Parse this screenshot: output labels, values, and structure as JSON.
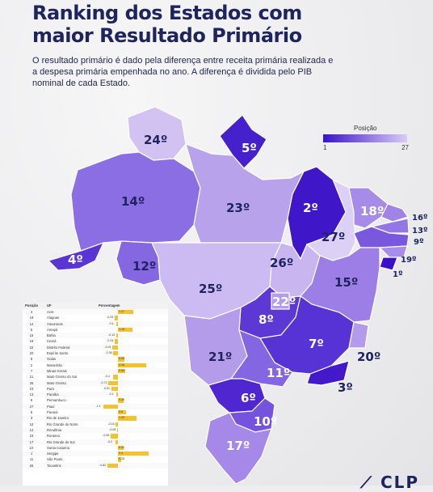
{
  "title": {
    "line1": "Ranking dos Estados com",
    "line2": "maior Resultado Primário"
  },
  "subtitle": "O resultado primário é dado pela diferença entre receita primária realizada e a despesa primária empenhada no ano. A diferença é dividida pelo PIB nominal de cada Estado.",
  "legend": {
    "title": "Posição",
    "min": "1",
    "max": "27",
    "color_min": "#3b12c9",
    "color_max": "#d9ccf5"
  },
  "map_labels": {
    "RR": "24º",
    "AP": "5º",
    "AM": "14º",
    "PA": "23º",
    "MA": "2º",
    "CE": "18º",
    "RN": "16º",
    "PB": "13º",
    "PE": "9º",
    "AL": "19º",
    "SE": "1º",
    "PI": "27º",
    "AC": "4º",
    "RO": "12º",
    "TO": "26º",
    "BA": "15º",
    "MT": "25º",
    "DF": "22º",
    "GO": "8º",
    "MG": "7º",
    "ES": "20º",
    "MS": "21º",
    "SP": "11º",
    "RJ": "3º",
    "PR": "6º",
    "SC": "10º",
    "RS": "17º"
  },
  "table": {
    "headers": {
      "pos": "Posição",
      "uf": "UF",
      "pct": "Porcentagem"
    },
    "rows": [
      {
        "pos": "4",
        "uf": "Acre",
        "pct": "1.17",
        "v": 1.17
      },
      {
        "pos": "19",
        "uf": "Alagoas",
        "pct": "-0.25",
        "v": -0.25
      },
      {
        "pos": "14",
        "uf": "Amazonas",
        "pct": "-0.1",
        "v": -0.1
      },
      {
        "pos": "5",
        "uf": "Amapá",
        "pct": "1.15",
        "v": 1.15
      },
      {
        "pos": "15",
        "uf": "Bahia",
        "pct": "-0.13",
        "v": -0.13
      },
      {
        "pos": "18",
        "uf": "Ceará",
        "pct": "-0.24",
        "v": -0.24
      },
      {
        "pos": "22",
        "uf": "Distrito Federal",
        "pct": "-0.41",
        "v": -0.41
      },
      {
        "pos": "20",
        "uf": "Espírito Santo",
        "pct": "-0.35",
        "v": -0.35
      },
      {
        "pos": "8",
        "uf": "Goiás",
        "pct": "0.53",
        "v": 0.53
      },
      {
        "pos": "2",
        "uf": "Maranhão",
        "pct": "2.16",
        "v": 2.16
      },
      {
        "pos": "7",
        "uf": "Minas Gerais",
        "pct": "0.54",
        "v": 0.54
      },
      {
        "pos": "21",
        "uf": "Mato Grosso do Sul",
        "pct": "-0.4",
        "v": -0.4
      },
      {
        "pos": "25",
        "uf": "Mato Grosso",
        "pct": "-0.73",
        "v": -0.73
      },
      {
        "pos": "23",
        "uf": "Pará",
        "pct": "-0.51",
        "v": -0.51
      },
      {
        "pos": "13",
        "uf": "Paraíba",
        "pct": "-0.1",
        "v": -0.1
      },
      {
        "pos": "9",
        "uf": "Pernambuco",
        "pct": "0.44",
        "v": 0.44
      },
      {
        "pos": "27",
        "uf": "Piauí",
        "pct": "-1.1",
        "v": -1.1
      },
      {
        "pos": "6",
        "uf": "Paraná",
        "pct": "0.6",
        "v": 0.6
      },
      {
        "pos": "3",
        "uf": "Rio de Janeiro",
        "pct": "1.43",
        "v": 1.43
      },
      {
        "pos": "16",
        "uf": "Rio Grande do Norte",
        "pct": "-0.16",
        "v": -0.16
      },
      {
        "pos": "12",
        "uf": "Rondônia",
        "pct": "-0.05",
        "v": -0.05
      },
      {
        "pos": "24",
        "uf": "Roraima",
        "pct": "-0.55",
        "v": -0.55
      },
      {
        "pos": "17",
        "uf": "Rio Grande do Sul",
        "pct": "-0.2",
        "v": -0.2
      },
      {
        "pos": "10",
        "uf": "Santa Catarina",
        "pct": "0.41",
        "v": 0.41
      },
      {
        "pos": "1",
        "uf": "Sergipe",
        "pct": "2.4",
        "v": 2.4
      },
      {
        "pos": "11",
        "uf": "São Paulo",
        "pct": "0.26",
        "v": 0.26
      },
      {
        "pos": "26",
        "uf": "Tocantins",
        "pct": "-0.82",
        "v": -0.82
      }
    ]
  }
}
